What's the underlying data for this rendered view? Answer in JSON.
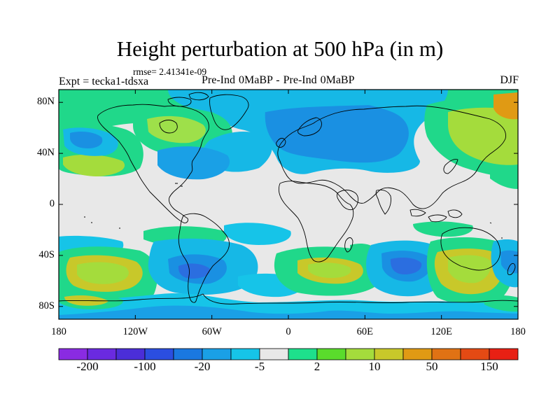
{
  "title": "Height perturbation at 500 hPa (in m)",
  "rmse": "rmse= 2.41341e-09",
  "expt": "Expt = tecka1-tdsxa",
  "experiment_name": "Pre-Ind 0MaBP - Pre-Ind    0MaBP",
  "season": "DJF",
  "map": {
    "projection": "cylindrical-equidistant",
    "lon_range": [
      -180,
      180
    ],
    "lat_range": [
      -90,
      90
    ],
    "lat_labels": [
      "80N",
      "40N",
      "0",
      "40S",
      "80S"
    ],
    "lon_labels": [
      "180",
      "120W",
      "60W",
      "0",
      "60E",
      "120E",
      "180"
    ],
    "background_color": "#e8e8e8"
  },
  "colorbar": {
    "colors": [
      "#8a2be2",
      "#6a2ae0",
      "#4b2ed8",
      "#2b4ee0",
      "#1a78e0",
      "#1aa0e6",
      "#16c4e8",
      "#e8e8e8",
      "#1ee08c",
      "#5adc2c",
      "#a4dc3c",
      "#c8c82a",
      "#e09a14",
      "#e07214",
      "#e44a14",
      "#e82014"
    ],
    "labels": [
      "-200",
      "-100",
      "-20",
      "-5",
      "2",
      "10",
      "50",
      "150"
    ]
  },
  "features": [
    {
      "kind": "positive",
      "center": [
        -147,
        43
      ],
      "note": "North Pacific green/yellow"
    },
    {
      "kind": "negative",
      "center": [
        -163,
        46
      ],
      "note": "North Pacific blue core"
    },
    {
      "kind": "positive",
      "center": [
        -95,
        60
      ],
      "note": "North America green"
    },
    {
      "kind": "negative",
      "center": [
        -62,
        37
      ],
      "note": "Western Atlantic blue"
    },
    {
      "kind": "negative",
      "center": [
        40,
        65
      ],
      "note": "Eurasia blue"
    },
    {
      "kind": "positive",
      "center": [
        142,
        60
      ],
      "note": "East Asia / Siberia green"
    },
    {
      "kind": "positive",
      "center": [
        -143,
        -48
      ],
      "note": "South Pacific yellow"
    },
    {
      "kind": "negative",
      "center": [
        -80,
        -55
      ],
      "note": "Southern Chile blue"
    },
    {
      "kind": "positive",
      "center": [
        43,
        -48
      ],
      "note": "South Indian green"
    },
    {
      "kind": "negative",
      "center": [
        90,
        -50
      ],
      "note": "South Indian blue"
    },
    {
      "kind": "positive",
      "center": [
        140,
        -48
      ],
      "note": "Australia south yellow"
    }
  ]
}
